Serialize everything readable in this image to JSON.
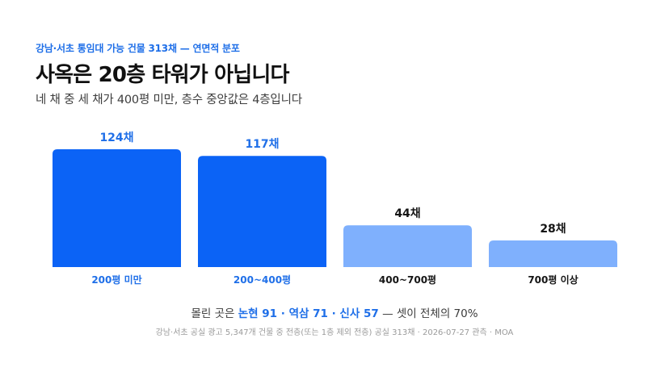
{
  "header": {
    "eyebrow": "강남·서초 통임대 가능 건물 313채 — 연면적 분포",
    "title": "사옥은 20층 타워가 아닙니다",
    "subtitle": "네 채 중 세 채가 400평 미만, 층수 중앙값은 4층입니다"
  },
  "chart_data": {
    "type": "bar",
    "categories": [
      "200평 미만",
      "200~400평",
      "400~700평",
      "700평 이상"
    ],
    "values": [
      124,
      117,
      44,
      28
    ],
    "value_labels": [
      "124채",
      "117채",
      "44채",
      "28채"
    ],
    "ylim": [
      0,
      124
    ],
    "grid": false,
    "highlighted": [
      true,
      true,
      false,
      false
    ],
    "colors": {
      "highlight_bar": "#0b63f6",
      "muted_bar": "#7fb0fd",
      "highlight_text": "#1f6fe8",
      "muted_text": "#151515"
    }
  },
  "footer": {
    "summary_lead": "몰린 곳은",
    "summary_highlight": "논현 91 · 역삼 71 · 신사 57",
    "summary_tail": "— 셋이 전체의 70%",
    "source": "강남·서초 공실 광고 5,347개 건물 중 전층(또는 1층 제외 전층) 공실 313채 · 2026-07-27 관측 · MOA"
  }
}
